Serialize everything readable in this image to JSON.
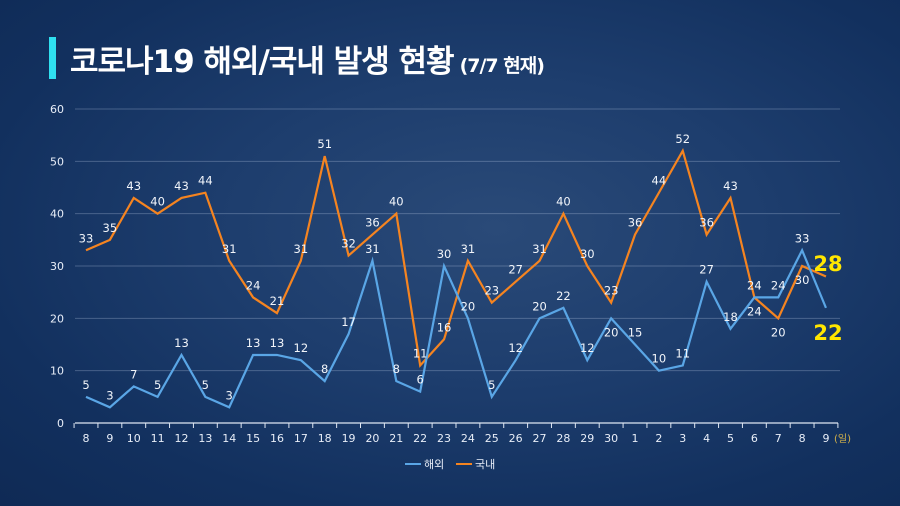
{
  "title": {
    "main": "코로나19 해외/국내 발생 현황",
    "sub": "(7/7 현재)"
  },
  "colors": {
    "overseas": "#5aa6e6",
    "domestic": "#f58420",
    "highlight": "#ffe600",
    "accent": "#2fe0f0"
  },
  "chart_data": {
    "type": "line",
    "x": [
      "8",
      "9",
      "10",
      "11",
      "12",
      "13",
      "14",
      "15",
      "16",
      "17",
      "18",
      "19",
      "20",
      "21",
      "22",
      "23",
      "24",
      "25",
      "26",
      "27",
      "28",
      "29",
      "30",
      "1",
      "2",
      "3",
      "4",
      "5",
      "6",
      "7",
      "8",
      "9"
    ],
    "x_unit": "(일)",
    "ylim": [
      0,
      60
    ],
    "yticks": [
      "0",
      "10",
      "20",
      "30",
      "40",
      "50",
      "60"
    ],
    "grid": true,
    "legend_position": "bottom",
    "series": [
      {
        "name": "해외",
        "values": [
          5,
          3,
          7,
          5,
          13,
          5,
          3,
          13,
          13,
          12,
          8,
          17,
          31,
          8,
          6,
          30,
          20,
          5,
          12,
          20,
          22,
          12,
          20,
          15,
          10,
          11,
          27,
          18,
          24,
          24,
          33,
          22
        ]
      },
      {
        "name": "국내",
        "values": [
          33,
          35,
          43,
          40,
          43,
          44,
          31,
          24,
          21,
          31,
          51,
          32,
          36,
          40,
          11,
          16,
          31,
          23,
          27,
          31,
          40,
          30,
          23,
          36,
          44,
          52,
          36,
          43,
          24,
          20,
          30,
          28
        ]
      }
    ],
    "highlight_labels": {
      "domestic": "28",
      "overseas": "22"
    }
  }
}
